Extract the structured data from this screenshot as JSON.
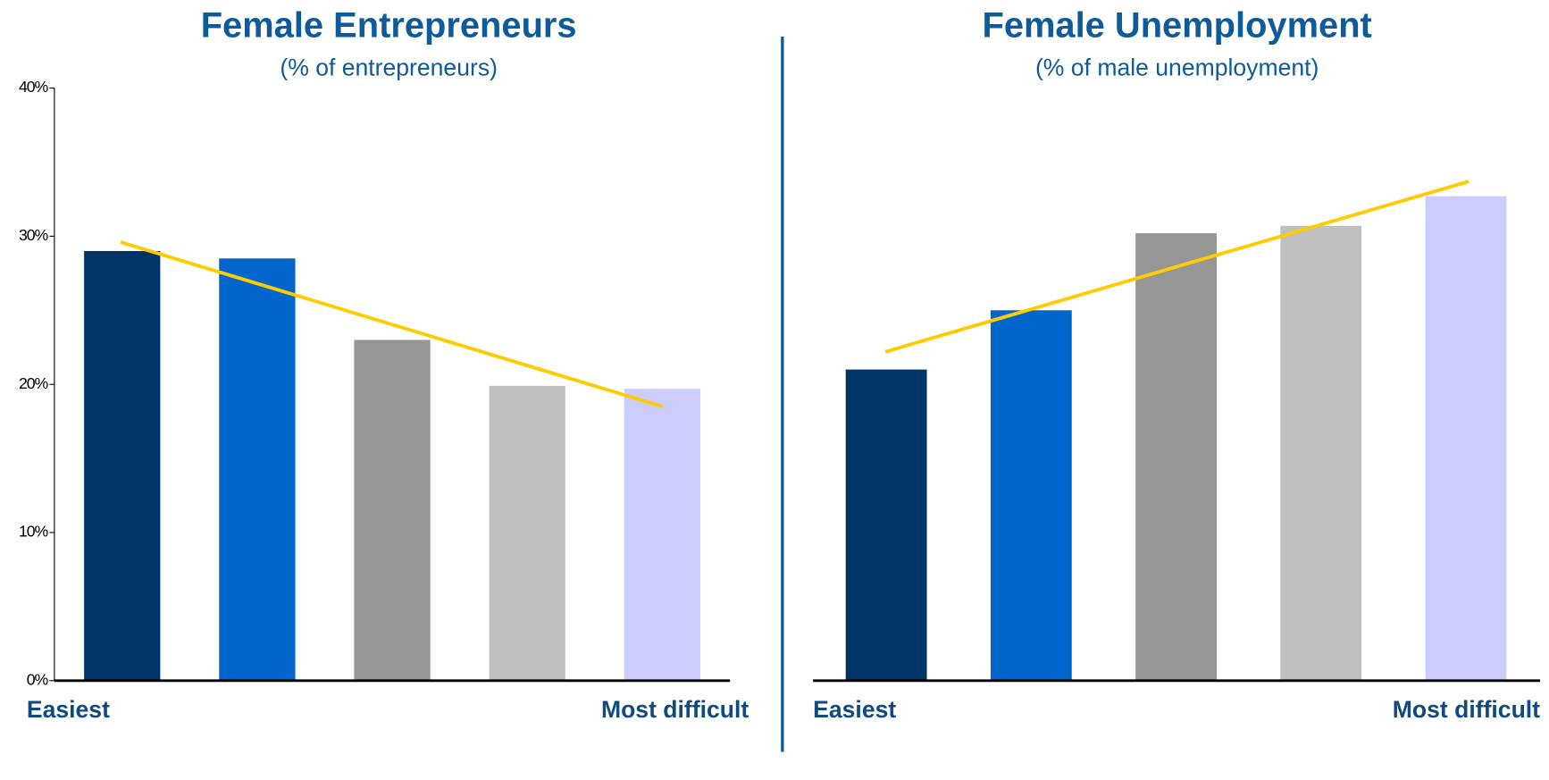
{
  "chart_data": [
    {
      "type": "bar",
      "title": "Female Entrepreneurs",
      "subtitle": "(% of entrepreneurs)",
      "x_labels": [
        "Easiest",
        "Most difficult"
      ],
      "values": [
        29,
        28.5,
        23,
        19.9,
        19.7
      ],
      "colors": [
        "#003366",
        "#0066cc",
        "#969696",
        "#c0c0c0",
        "#ccccff"
      ],
      "ylim": [
        0,
        40
      ],
      "yticks": [
        {
          "value": 0,
          "label": "0%"
        },
        {
          "value": 10,
          "label": "10%"
        },
        {
          "value": 20,
          "label": "20%"
        },
        {
          "value": 30,
          "label": "30%"
        },
        {
          "value": 40,
          "label": "40%"
        }
      ],
      "trend": {
        "color": "#ffcc00",
        "values": [
          29.6,
          18.5
        ]
      }
    },
    {
      "type": "bar",
      "title": "Female Unemployment",
      "subtitle": "(% of male unemployment)",
      "x_labels": [
        "Easiest",
        "Most difficult"
      ],
      "values": [
        21,
        25,
        30.2,
        30.7,
        32.7
      ],
      "colors": [
        "#003366",
        "#0066cc",
        "#969696",
        "#c0c0c0",
        "#ccccff"
      ],
      "ylim": [
        0,
        40
      ],
      "trend": {
        "color": "#ffcc00",
        "values": [
          22.2,
          33.7
        ]
      }
    }
  ]
}
